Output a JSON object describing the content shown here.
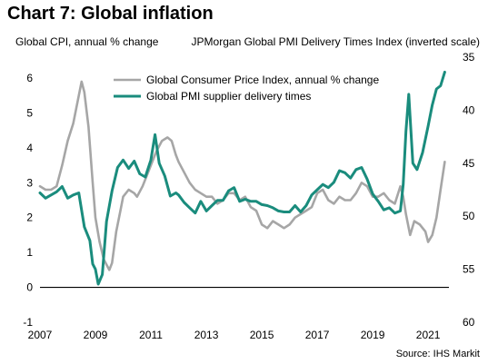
{
  "title": "Chart 7: Global inflation",
  "source": "Source: IHS Markit",
  "colors": {
    "cpi": "#a6a6a6",
    "pmi": "#1a8c7d",
    "zero_line": "#000000"
  },
  "chart_data": {
    "type": "line",
    "ylabel_left": "Global CPI, annual % change",
    "ylabel_right": "JPMorgan Global PMI Delivery Times Index (inverted scale)",
    "y_left_lim": [
      -1,
      6.6
    ],
    "y_right_lim": [
      60,
      35
    ],
    "y_right_inverted": true,
    "left_ticks": [
      "-1",
      "0",
      "1",
      "2",
      "3",
      "4",
      "5",
      "6"
    ],
    "right_ticks": [
      "35",
      "40",
      "45",
      "50",
      "55",
      "60"
    ],
    "x_ticks": [
      "2007",
      "2009",
      "2011",
      "2013",
      "2015",
      "2017",
      "2019",
      "2021"
    ],
    "x_range": [
      2007.0,
      2021.75
    ],
    "legend_position": "top-center",
    "series": [
      {
        "name": "Global Consumer Price Index, annual % change",
        "axis": "left",
        "x": [
          2007.0,
          2007.2,
          2007.4,
          2007.6,
          2007.8,
          2008.0,
          2008.2,
          2008.35,
          2008.5,
          2008.6,
          2008.75,
          2008.9,
          2009.0,
          2009.15,
          2009.3,
          2009.5,
          2009.6,
          2009.75,
          2009.9,
          2010.0,
          2010.2,
          2010.4,
          2010.5,
          2010.7,
          2010.9,
          2011.0,
          2011.2,
          2011.4,
          2011.6,
          2011.75,
          2011.9,
          2012.0,
          2012.2,
          2012.4,
          2012.6,
          2012.8,
          2013.0,
          2013.2,
          2013.4,
          2013.6,
          2013.8,
          2014.0,
          2014.2,
          2014.4,
          2014.6,
          2014.8,
          2015.0,
          2015.2,
          2015.4,
          2015.6,
          2015.8,
          2016.0,
          2016.2,
          2016.4,
          2016.6,
          2016.8,
          2017.0,
          2017.2,
          2017.4,
          2017.6,
          2017.8,
          2018.0,
          2018.2,
          2018.4,
          2018.6,
          2018.8,
          2019.0,
          2019.2,
          2019.4,
          2019.6,
          2019.8,
          2020.0,
          2020.1,
          2020.2,
          2020.35,
          2020.5,
          2020.7,
          2020.9,
          2021.0,
          2021.15,
          2021.3,
          2021.45,
          2021.6
        ],
        "y": [
          2.9,
          2.8,
          2.8,
          2.9,
          3.5,
          4.2,
          4.7,
          5.3,
          5.9,
          5.6,
          4.6,
          3.0,
          2.0,
          1.3,
          0.8,
          0.5,
          0.7,
          1.6,
          2.2,
          2.6,
          2.8,
          2.7,
          2.6,
          2.9,
          3.3,
          3.5,
          3.9,
          4.2,
          4.3,
          4.2,
          3.8,
          3.6,
          3.3,
          3.0,
          2.8,
          2.7,
          2.6,
          2.6,
          2.4,
          2.5,
          2.7,
          2.7,
          2.5,
          2.6,
          2.3,
          2.2,
          1.8,
          1.7,
          1.9,
          1.8,
          1.7,
          1.8,
          2.0,
          2.1,
          2.2,
          2.3,
          2.7,
          2.8,
          2.5,
          2.4,
          2.6,
          2.5,
          2.5,
          2.7,
          3.0,
          2.9,
          2.6,
          2.6,
          2.7,
          2.5,
          2.4,
          2.9,
          2.6,
          2.1,
          1.5,
          1.9,
          1.8,
          1.6,
          1.3,
          1.5,
          2.0,
          2.8,
          3.6
        ]
      },
      {
        "name": "Global PMI supplier delivery times",
        "axis": "right",
        "x": [
          2007.0,
          2007.2,
          2007.4,
          2007.6,
          2007.8,
          2008.0,
          2008.2,
          2008.4,
          2008.6,
          2008.8,
          2008.9,
          2009.0,
          2009.1,
          2009.25,
          2009.4,
          2009.6,
          2009.8,
          2010.0,
          2010.2,
          2010.4,
          2010.6,
          2010.8,
          2011.0,
          2011.15,
          2011.3,
          2011.5,
          2011.7,
          2011.9,
          2012.0,
          2012.2,
          2012.4,
          2012.6,
          2012.8,
          2013.0,
          2013.2,
          2013.4,
          2013.6,
          2013.8,
          2014.0,
          2014.2,
          2014.4,
          2014.6,
          2014.8,
          2015.0,
          2015.2,
          2015.4,
          2015.6,
          2015.8,
          2016.0,
          2016.2,
          2016.4,
          2016.6,
          2016.8,
          2017.0,
          2017.2,
          2017.4,
          2017.6,
          2017.8,
          2018.0,
          2018.2,
          2018.4,
          2018.6,
          2018.8,
          2019.0,
          2019.2,
          2019.4,
          2019.6,
          2019.8,
          2020.0,
          2020.1,
          2020.2,
          2020.3,
          2020.45,
          2020.6,
          2020.8,
          2021.0,
          2021.15,
          2021.3,
          2021.45,
          2021.6
        ],
        "y": [
          47.8,
          48.3,
          48.0,
          47.7,
          47.2,
          48.3,
          48.0,
          47.8,
          51.0,
          52.3,
          54.5,
          55.0,
          56.4,
          55.5,
          50.5,
          47.6,
          45.4,
          44.7,
          45.5,
          44.8,
          46.0,
          46.3,
          44.7,
          42.3,
          45.0,
          46.2,
          48.1,
          47.8,
          48.0,
          48.7,
          49.2,
          49.7,
          48.6,
          49.5,
          49.0,
          48.5,
          48.5,
          47.6,
          47.3,
          48.6,
          48.4,
          48.6,
          48.6,
          48.9,
          49.0,
          49.2,
          49.5,
          49.6,
          49.6,
          49.0,
          49.6,
          49.0,
          48.0,
          47.5,
          47.0,
          47.3,
          46.8,
          45.7,
          45.9,
          46.4,
          45.6,
          45.4,
          46.5,
          47.9,
          48.6,
          49.4,
          49.2,
          49.7,
          49.5,
          47.0,
          42.0,
          38.5,
          45.0,
          45.6,
          44.0,
          41.5,
          39.5,
          38.0,
          37.7,
          36.4
        ]
      }
    ]
  }
}
